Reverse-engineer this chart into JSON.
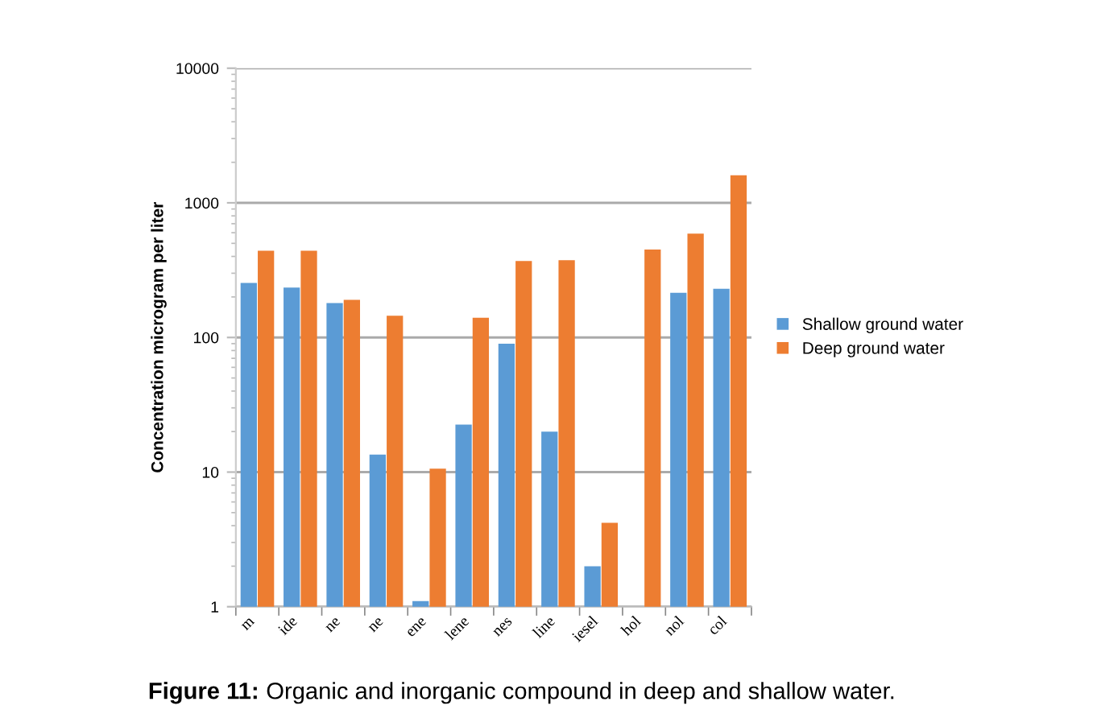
{
  "chart_data": {
    "type": "bar",
    "ylabel": "Concentration microgram per liter",
    "categories": [
      "m",
      "ide",
      "ne",
      "ne",
      "ene",
      "lene",
      "nes",
      "line",
      "iesel",
      "hol",
      "nol",
      "col"
    ],
    "series": [
      {
        "name": "Shallow ground water",
        "color": "#5b9bd5",
        "values": [
          254,
          235,
          180,
          13.5,
          1.1,
          22.5,
          90,
          20,
          2,
          null,
          215,
          230
        ]
      },
      {
        "name": "Deep ground water",
        "color": "#ed7d31",
        "values": [
          440,
          440,
          190,
          145,
          10.6,
          140,
          370,
          375,
          4.2,
          450,
          590,
          1600
        ]
      }
    ],
    "log": true,
    "ylim": [
      1,
      10000
    ],
    "yticks": [
      1,
      10,
      100,
      1000,
      10000
    ],
    "grid": "y",
    "legend": "right",
    "annotations": [
      "Figure 11: Organic and inorganic compound in deep and shallow water."
    ]
  }
}
